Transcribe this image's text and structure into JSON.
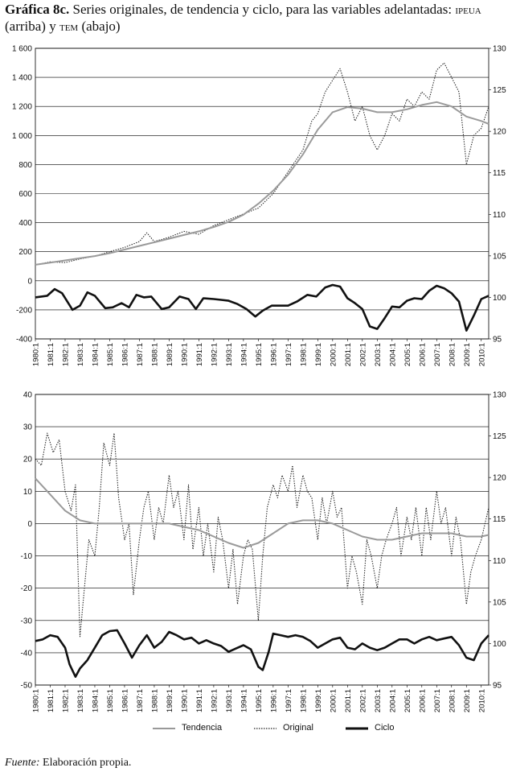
{
  "title": {
    "label": "Gráfica 8c.",
    "text_before": "Series originales, de tendencia y ciclo, para las variables adelantadas:",
    "var1": "ipeua",
    "text_mid1": "(arriba) y",
    "var2": "tem",
    "text_mid2": "(abajo)"
  },
  "legend": {
    "trend": "Tendencia",
    "original": "Original",
    "cycle": "Ciclo"
  },
  "footnote": {
    "label": "Fuente:",
    "text": "Elaboración propia."
  },
  "x_ticks": [
    "1980:1",
    "1981:1",
    "1982:1",
    "1983:1",
    "1984:1",
    "1985:1",
    "1986:1",
    "1987:1",
    "1988:1",
    "1989:1",
    "1990:1",
    "1991:1",
    "1992:1",
    "1993:1",
    "1994:1",
    "1995:1",
    "1996:1",
    "1997:1",
    "1998:1",
    "1999:1",
    "2000:1",
    "2001:1",
    "2002:1",
    "2003:1",
    "2004:1",
    "2005:1",
    "2006:1",
    "2007:1",
    "2008:1",
    "2009:1",
    "2010:1"
  ],
  "chart_data": [
    {
      "type": "line",
      "x_range": [
        1980.0,
        2010.5
      ],
      "left_axis": {
        "ylim": [
          -400,
          1600
        ],
        "ticks": [
          -400,
          -200,
          0,
          200,
          400,
          600,
          800,
          1000,
          1200,
          1400,
          1600
        ],
        "tick_labels": [
          "-400",
          "-200",
          "0",
          "200",
          "400",
          "600",
          "800",
          "1 000",
          "1 200",
          "1 400",
          "1 600"
        ]
      },
      "right_axis": {
        "ylim": [
          95,
          130
        ],
        "ticks": [
          95,
          100,
          105,
          110,
          115,
          120,
          125,
          130
        ],
        "tick_labels": [
          "95",
          "100",
          "105",
          "110",
          "115",
          "120",
          "125",
          "130"
        ]
      },
      "grid": "horizontal",
      "series": [
        {
          "name": "Original",
          "axis": "left",
          "style": "dotted",
          "x": [
            1980,
            1981,
            1982,
            1983,
            1984,
            1985,
            1986,
            1987,
            1987.5,
            1988,
            1989,
            1990,
            1991,
            1991.5,
            1992,
            1993,
            1994,
            1995,
            1996,
            1997,
            1998,
            1998.6,
            1999,
            1999.5,
            2000,
            2000.5,
            2001,
            2001.5,
            2002,
            2002.5,
            2003,
            2003.5,
            2004,
            2004.5,
            2005,
            2005.5,
            2006,
            2006.5,
            2007,
            2007.5,
            2008,
            2008.5,
            2009,
            2009.5,
            2010,
            2010.5
          ],
          "y": [
            110,
            130,
            125,
            150,
            170,
            200,
            230,
            270,
            330,
            270,
            300,
            340,
            320,
            350,
            380,
            420,
            460,
            500,
            600,
            750,
            900,
            1100,
            1150,
            1300,
            1380,
            1460,
            1300,
            1100,
            1200,
            1000,
            900,
            1000,
            1150,
            1100,
            1250,
            1200,
            1300,
            1250,
            1450,
            1500,
            1400,
            1300,
            800,
            1000,
            1050,
            1200
          ]
        },
        {
          "name": "Tendencia",
          "axis": "left",
          "style": "solid-gray",
          "x": [
            1980,
            1981,
            1982,
            1983,
            1984,
            1985,
            1986,
            1987,
            1988,
            1989,
            1990,
            1991,
            1992,
            1993,
            1994,
            1995,
            1996,
            1997,
            1998,
            1999,
            2000,
            2001,
            2002,
            2003,
            2004,
            2005,
            2006,
            2007,
            2008,
            2009,
            2010,
            2010.5
          ],
          "y": [
            110,
            125,
            140,
            155,
            170,
            190,
            215,
            240,
            265,
            290,
            315,
            340,
            370,
            405,
            455,
            530,
            620,
            730,
            870,
            1040,
            1160,
            1195,
            1185,
            1160,
            1160,
            1180,
            1210,
            1230,
            1200,
            1130,
            1100,
            1080
          ]
        },
        {
          "name": "Ciclo",
          "axis": "right",
          "style": "solid-black",
          "x": [
            1980,
            1980.8,
            1981.3,
            1981.8,
            1982.5,
            1983,
            1983.5,
            1984,
            1984.7,
            1985.2,
            1985.8,
            1986.3,
            1986.8,
            1987.3,
            1987.8,
            1988.5,
            1989,
            1989.7,
            1990.3,
            1990.8,
            1991.3,
            1992,
            1992.5,
            1993,
            1993.6,
            1994.2,
            1994.8,
            1995.3,
            1995.9,
            1996.5,
            1997,
            1997.6,
            1998.3,
            1998.9,
            1999.5,
            2000,
            2000.5,
            2001,
            2001.5,
            2002,
            2002.5,
            2003,
            2003.5,
            2004,
            2004.5,
            2005,
            2005.5,
            2006,
            2006.5,
            2007,
            2007.5,
            2008,
            2008.5,
            2009,
            2009.5,
            2010,
            2010.5
          ],
          "y": [
            100,
            100.2,
            101,
            100.5,
            98.5,
            99,
            100.6,
            100.2,
            98.7,
            98.8,
            99.3,
            98.8,
            100.3,
            100,
            100.1,
            98.6,
            98.8,
            100.1,
            99.8,
            98.6,
            99.9,
            99.8,
            99.7,
            99.6,
            99.2,
            98.6,
            97.7,
            98.4,
            99,
            99,
            99,
            99.5,
            100.3,
            100.1,
            101.2,
            101.5,
            101.3,
            99.9,
            99.3,
            98.6,
            96.5,
            96.2,
            97.5,
            98.9,
            98.8,
            99.6,
            99.9,
            99.8,
            100.8,
            101.4,
            101.1,
            100.5,
            99.5,
            96,
            97.8,
            99.8,
            100.2
          ]
        }
      ]
    },
    {
      "type": "line",
      "x_range": [
        1980.0,
        2010.5
      ],
      "left_axis": {
        "ylim": [
          -50,
          40
        ],
        "ticks": [
          -50,
          -40,
          -30,
          -20,
          -10,
          0,
          10,
          20,
          30,
          40
        ],
        "tick_labels": [
          "-50",
          "-40",
          "-30",
          "-20",
          "-10",
          "0",
          "10",
          "20",
          "30",
          "40"
        ]
      },
      "right_axis": {
        "ylim": [
          95,
          130
        ],
        "ticks": [
          95,
          100,
          105,
          110,
          115,
          120,
          125,
          130
        ],
        "tick_labels": [
          "95",
          "100",
          "105",
          "110",
          "115",
          "120",
          "125",
          "130"
        ]
      },
      "grid": "horizontal",
      "series": [
        {
          "name": "Original",
          "axis": "left",
          "style": "dotted",
          "x": [
            1980,
            1980.4,
            1980.8,
            1981.2,
            1981.6,
            1982,
            1982.4,
            1982.7,
            1983,
            1983.3,
            1983.6,
            1984,
            1984.3,
            1984.6,
            1985,
            1985.3,
            1985.6,
            1986,
            1986.3,
            1986.6,
            1987,
            1987.3,
            1987.6,
            1988,
            1988.3,
            1988.6,
            1989,
            1989.3,
            1989.6,
            1990,
            1990.3,
            1990.6,
            1991,
            1991.3,
            1991.6,
            1992,
            1992.3,
            1992.6,
            1993,
            1993.3,
            1993.6,
            1994,
            1994.3,
            1994.6,
            1995,
            1995.3,
            1995.6,
            1996,
            1996.3,
            1996.6,
            1997,
            1997.3,
            1997.6,
            1998,
            1998.3,
            1998.6,
            1999,
            1999.3,
            1999.6,
            2000,
            2000.3,
            2000.6,
            2001,
            2001.3,
            2001.6,
            2002,
            2002.3,
            2002.6,
            2003,
            2003.3,
            2003.6,
            2004,
            2004.3,
            2004.6,
            2005,
            2005.3,
            2005.6,
            2006,
            2006.3,
            2006.6,
            2007,
            2007.3,
            2007.6,
            2008,
            2008.3,
            2008.6,
            2009,
            2009.3,
            2009.6,
            2010,
            2010.5
          ],
          "y": [
            20,
            18,
            28,
            22,
            26,
            10,
            4,
            12,
            -35,
            -20,
            -5,
            -10,
            5,
            25,
            18,
            28,
            8,
            -5,
            0,
            -22,
            -5,
            5,
            10,
            -5,
            5,
            0,
            15,
            5,
            10,
            -5,
            12,
            -8,
            5,
            -10,
            0,
            -15,
            2,
            -5,
            -20,
            -8,
            -25,
            -10,
            -5,
            -8,
            -30,
            -10,
            5,
            12,
            8,
            15,
            10,
            18,
            5,
            15,
            10,
            8,
            -5,
            8,
            0,
            10,
            2,
            5,
            -20,
            -10,
            -15,
            -25,
            -5,
            -10,
            -20,
            -10,
            -5,
            0,
            5,
            -10,
            2,
            -5,
            5,
            -10,
            5,
            -5,
            10,
            0,
            5,
            -10,
            2,
            -5,
            -25,
            -15,
            -10,
            -5,
            5
          ]
        },
        {
          "name": "Tendencia",
          "axis": "left",
          "style": "solid-gray",
          "x": [
            1980,
            1981,
            1982,
            1983,
            1984,
            1985,
            1986,
            1987,
            1988,
            1989,
            1990,
            1991,
            1992,
            1993,
            1994,
            1995,
            1996,
            1997,
            1998,
            1999,
            2000,
            2001,
            2002,
            2003,
            2004,
            2005,
            2006,
            2007,
            2008,
            2009,
            2010,
            2010.5
          ],
          "y": [
            14,
            9,
            4,
            1,
            0,
            0,
            0,
            0,
            0,
            0,
            -1,
            -2,
            -4,
            -6,
            -7.5,
            -6,
            -3,
            0,
            1,
            1,
            0,
            -2,
            -4,
            -5,
            -5,
            -4,
            -3,
            -3,
            -3,
            -4,
            -4,
            -3.5
          ]
        },
        {
          "name": "Ciclo",
          "axis": "right",
          "style": "solid-black",
          "x": [
            1980,
            1980.5,
            1981,
            1981.5,
            1982,
            1982.3,
            1982.7,
            1983,
            1983.5,
            1984,
            1984.5,
            1985,
            1985.5,
            1986,
            1986.5,
            1987,
            1987.5,
            1988,
            1988.5,
            1989,
            1989.5,
            1990,
            1990.5,
            1991,
            1991.5,
            1992,
            1992.5,
            1993,
            1993.5,
            1994,
            1994.5,
            1995,
            1995.3,
            1995.7,
            1996,
            1996.5,
            1997,
            1997.5,
            1998,
            1998.5,
            1999,
            1999.5,
            2000,
            2000.5,
            2001,
            2001.5,
            2002,
            2002.5,
            2003,
            2003.5,
            2004,
            2004.5,
            2005,
            2005.5,
            2006,
            2006.5,
            2007,
            2007.5,
            2008,
            2008.5,
            2009,
            2009.5,
            2010,
            2010.5
          ],
          "y": [
            100.3,
            100.5,
            101,
            100.8,
            99.5,
            97.5,
            96,
            97,
            98,
            99.5,
            101,
            101.5,
            101.6,
            100,
            98.3,
            99.8,
            101,
            99.5,
            100.2,
            101.4,
            101,
            100.5,
            100.7,
            100,
            100.4,
            100,
            99.7,
            99,
            99.4,
            99.8,
            99.3,
            97.2,
            96.8,
            99,
            101.2,
            101,
            100.8,
            101,
            100.8,
            100.3,
            99.5,
            100,
            100.5,
            100.7,
            99.5,
            99.3,
            100,
            99.5,
            99.2,
            99.5,
            100,
            100.5,
            100.5,
            100,
            100.5,
            100.8,
            100.4,
            100.6,
            100.8,
            99.8,
            98.3,
            98,
            100,
            101
          ]
        }
      ]
    }
  ]
}
